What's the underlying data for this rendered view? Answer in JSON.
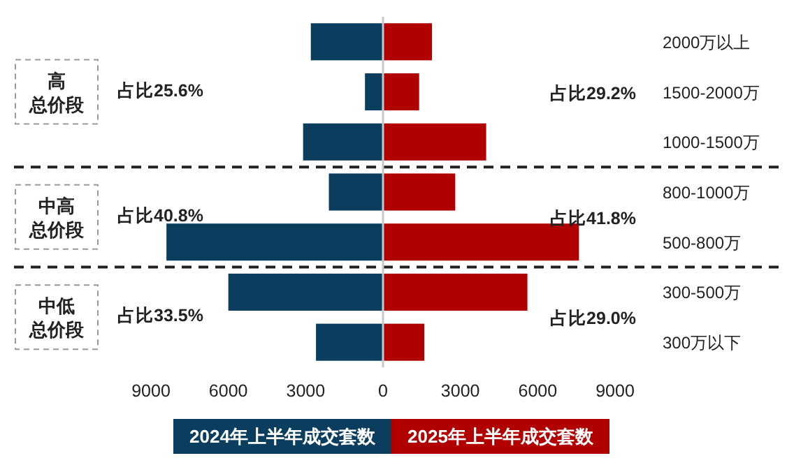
{
  "chart_data": {
    "type": "bar",
    "orientation": "horizontal",
    "categories": [
      "2000万以上",
      "1500-2000万",
      "1000-1500万",
      "800-1000万",
      "500-800万",
      "300-500万",
      "300万以下"
    ],
    "series": [
      {
        "name": "2024年上半年成交套数",
        "color": "#0b3d5e",
        "values": [
          -2800,
          -700,
          -3100,
          -2100,
          -8400,
          -6000,
          -2600
        ]
      },
      {
        "name": "2025年上半年成交套数",
        "color": "#b00000",
        "values": [
          1900,
          1400,
          4000,
          2800,
          7600,
          5600,
          1600
        ]
      }
    ],
    "xlim": [
      -9000,
      9000
    ],
    "xticks": [
      {
        "value": -9000,
        "label": "9000"
      },
      {
        "value": -6000,
        "label": "6000"
      },
      {
        "value": -3000,
        "label": "3000"
      },
      0,
      3000,
      6000,
      9000
    ],
    "stacked": true,
    "annotations": [
      "高总价段",
      "占比25.6%",
      "占比29.2%",
      "中高总价段",
      "占比40.8%",
      "占比41.8%",
      "中低总价段",
      "占比33.5%",
      "占比29.0%"
    ],
    "grid": false,
    "legend": "bottom"
  }
}
